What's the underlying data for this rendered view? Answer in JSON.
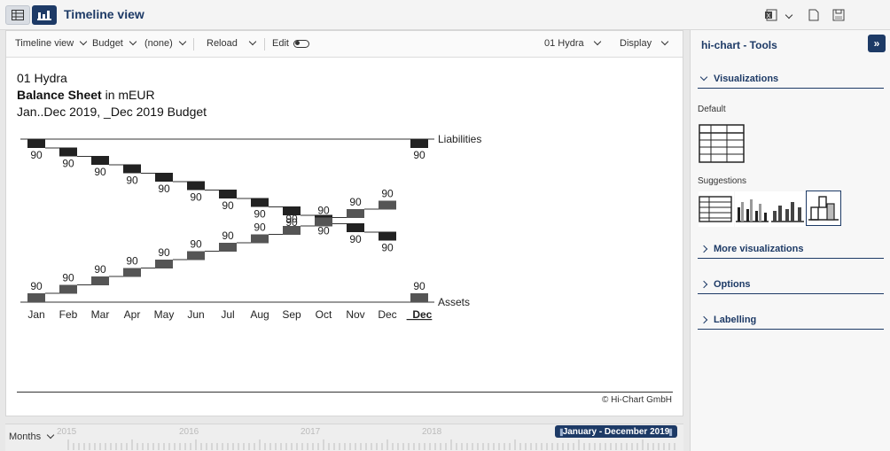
{
  "header": {
    "title": "Timeline view"
  },
  "toolbar": {
    "view": "Timeline view",
    "scenario": "Budget",
    "comparison": "(none)",
    "reload": "Reload",
    "edit": "Edit",
    "entity": "01 Hydra",
    "display": "Display"
  },
  "chart": {
    "entity": "01 Hydra",
    "title_bold": "Balance Sheet",
    "title_unit": "in mEUR",
    "period": "Jan..Dec 2019, _Dec 2019 Budget",
    "copyright": "© Hi-Chart GmbH"
  },
  "chart_data": {
    "type": "bar",
    "categories": [
      "Jan",
      "Feb",
      "Mar",
      "Apr",
      "May",
      "Jun",
      "Jul",
      "Aug",
      "Sep",
      "Oct",
      "Nov",
      "Dec",
      "_Dec"
    ],
    "series": [
      {
        "name": "Liabilities",
        "values": [
          90,
          90,
          90,
          90,
          90,
          90,
          90,
          90,
          90,
          90,
          90,
          90,
          90
        ],
        "color": "#222222"
      },
      {
        "name": "Assets",
        "values": [
          90,
          90,
          90,
          90,
          90,
          90,
          90,
          90,
          90,
          90,
          90,
          90,
          90
        ],
        "color": "#555555"
      }
    ]
  },
  "timeline": {
    "granularity": "Months",
    "years": [
      "2015",
      "2016",
      "2017",
      "2018"
    ],
    "range": "January - December 2019"
  },
  "tools": {
    "title": "hi-chart - Tools",
    "visualizations": "Visualizations",
    "default_label": "Default",
    "suggestions_label": "Suggestions",
    "more_visualizations": "More visualizations",
    "options": "Options",
    "labelling": "Labelling"
  },
  "colors": {
    "accent": "#1d3a66"
  }
}
